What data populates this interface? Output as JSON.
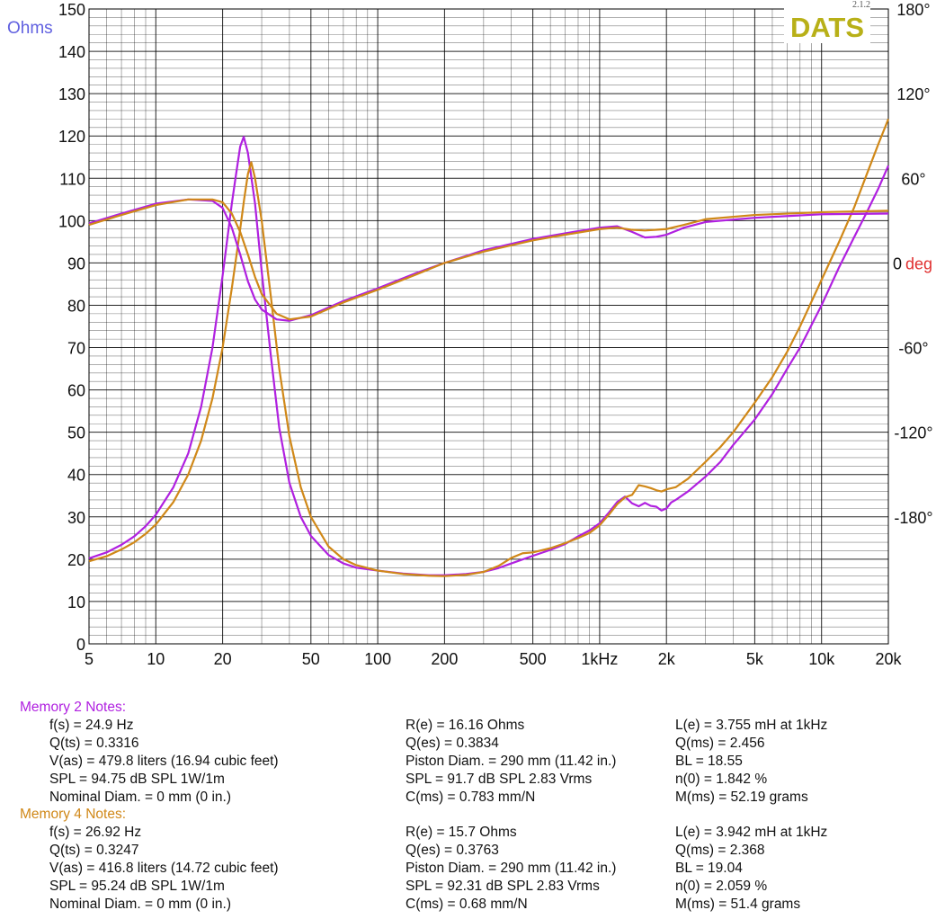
{
  "chart_data": {
    "type": "line",
    "xscale": "log",
    "x_ticks": [
      5,
      10,
      20,
      50,
      100,
      200,
      500,
      1000,
      2000,
      5000,
      10000,
      20000
    ],
    "x_tick_labels": [
      "5",
      "10",
      "20",
      "50",
      "100",
      "200",
      "500",
      "1kHz",
      "2k",
      "5k",
      "10k",
      "20k"
    ],
    "xlim": [
      5,
      20000
    ],
    "ylim": [
      0,
      150
    ],
    "y_ticks": [
      0,
      10,
      20,
      30,
      40,
      50,
      60,
      70,
      80,
      90,
      100,
      110,
      120,
      130,
      140,
      150
    ],
    "y_tick_labels": [
      "0",
      "10",
      "20",
      "30",
      "40",
      "50",
      "60",
      "70",
      "80",
      "90",
      "100",
      "110",
      "120",
      "130",
      "140",
      "150"
    ],
    "ylabel": "Ohms",
    "y2lim": [
      -270,
      180
    ],
    "y2_ticks": [
      180,
      120,
      60,
      0,
      -60,
      -120,
      -180
    ],
    "y2_tick_labels": [
      "180°",
      "120°",
      "60°",
      "0",
      "-60°",
      "-120°",
      "-180°"
    ],
    "y2label": "deg",
    "brand": "DATS",
    "version": "2.1.2",
    "grid": true,
    "colors": {
      "memory2": "#b020e0",
      "memory4": "#d08818",
      "ohms_label": "#6060e0",
      "deg_label": "#e03030",
      "brand": "#b8b018",
      "grid": "#000000"
    },
    "series": [
      {
        "name": "Memory 2 impedance",
        "color": "#b020e0",
        "points": [
          [
            5,
            20.2
          ],
          [
            6,
            21.6
          ],
          [
            7,
            23.4
          ],
          [
            8,
            25.4
          ],
          [
            9,
            27.8
          ],
          [
            10,
            30.5
          ],
          [
            12,
            37
          ],
          [
            14,
            45
          ],
          [
            16,
            56
          ],
          [
            18,
            70
          ],
          [
            20,
            87
          ],
          [
            22,
            104
          ],
          [
            23,
            111
          ],
          [
            24,
            117.5
          ],
          [
            24.9,
            119.8
          ],
          [
            26,
            116
          ],
          [
            28,
            104
          ],
          [
            30,
            88
          ],
          [
            33,
            68
          ],
          [
            36,
            51
          ],
          [
            40,
            38
          ],
          [
            45,
            30
          ],
          [
            50,
            25.5
          ],
          [
            60,
            21
          ],
          [
            70,
            19
          ],
          [
            80,
            18
          ],
          [
            100,
            17.3
          ],
          [
            130,
            16.6
          ],
          [
            170,
            16.2
          ],
          [
            200,
            16.2
          ],
          [
            250,
            16.5
          ],
          [
            300,
            17
          ],
          [
            350,
            17.9
          ],
          [
            400,
            19
          ],
          [
            500,
            20.8
          ],
          [
            600,
            22.2
          ],
          [
            700,
            23.6
          ],
          [
            800,
            25.4
          ],
          [
            900,
            26.8
          ],
          [
            1000,
            28.5
          ],
          [
            1100,
            31
          ],
          [
            1200,
            33.5
          ],
          [
            1300,
            34.8
          ],
          [
            1400,
            33.2
          ],
          [
            1500,
            32.5
          ],
          [
            1600,
            33.3
          ],
          [
            1700,
            32.6
          ],
          [
            1800,
            32.4
          ],
          [
            1900,
            31.5
          ],
          [
            2000,
            32
          ],
          [
            2100,
            33.4
          ],
          [
            2200,
            34
          ],
          [
            2500,
            36
          ],
          [
            3000,
            39.5
          ],
          [
            3500,
            43
          ],
          [
            4000,
            47
          ],
          [
            5000,
            53
          ],
          [
            6000,
            59
          ],
          [
            7000,
            65
          ],
          [
            8000,
            70
          ],
          [
            10000,
            80
          ],
          [
            12000,
            89
          ],
          [
            14000,
            96
          ],
          [
            16000,
            102
          ],
          [
            18000,
            107.5
          ],
          [
            20000,
            113
          ]
        ]
      },
      {
        "name": "Memory 4 impedance",
        "color": "#d08818",
        "points": [
          [
            5,
            19.5
          ],
          [
            6,
            20.7
          ],
          [
            7,
            22.3
          ],
          [
            8,
            24
          ],
          [
            9,
            26
          ],
          [
            10,
            28.2
          ],
          [
            12,
            33.5
          ],
          [
            14,
            40
          ],
          [
            16,
            48
          ],
          [
            18,
            58
          ],
          [
            20,
            70
          ],
          [
            22,
            84
          ],
          [
            24,
            98
          ],
          [
            25,
            105
          ],
          [
            26,
            111
          ],
          [
            26.92,
            113.8
          ],
          [
            28,
            110
          ],
          [
            30,
            100
          ],
          [
            33,
            82
          ],
          [
            36,
            65
          ],
          [
            40,
            49
          ],
          [
            45,
            37
          ],
          [
            50,
            30
          ],
          [
            60,
            23
          ],
          [
            70,
            20
          ],
          [
            80,
            18.6
          ],
          [
            100,
            17.3
          ],
          [
            130,
            16.5
          ],
          [
            170,
            16.1
          ],
          [
            200,
            16
          ],
          [
            250,
            16.3
          ],
          [
            300,
            17
          ],
          [
            350,
            18.4
          ],
          [
            400,
            20.3
          ],
          [
            450,
            21.4
          ],
          [
            500,
            21.6
          ],
          [
            600,
            22.6
          ],
          [
            700,
            23.8
          ],
          [
            800,
            25
          ],
          [
            900,
            26.2
          ],
          [
            1000,
            28
          ],
          [
            1100,
            30.5
          ],
          [
            1200,
            33
          ],
          [
            1300,
            34.6
          ],
          [
            1400,
            35.2
          ],
          [
            1500,
            37.5
          ],
          [
            1600,
            37.2
          ],
          [
            1700,
            36.8
          ],
          [
            1800,
            36.3
          ],
          [
            1900,
            36
          ],
          [
            2000,
            36.5
          ],
          [
            2200,
            37
          ],
          [
            2500,
            39
          ],
          [
            3000,
            43
          ],
          [
            3500,
            46.5
          ],
          [
            4000,
            50
          ],
          [
            5000,
            57
          ],
          [
            6000,
            63
          ],
          [
            7000,
            69
          ],
          [
            8000,
            75
          ],
          [
            10000,
            86
          ],
          [
            12000,
            95
          ],
          [
            14000,
            103
          ],
          [
            16000,
            111
          ],
          [
            18000,
            118
          ],
          [
            20000,
            124
          ]
        ]
      },
      {
        "name": "Memory 2 phase",
        "axis": "deg",
        "color": "#b020e0",
        "points": [
          [
            5,
            28
          ],
          [
            7,
            35
          ],
          [
            10,
            42
          ],
          [
            14,
            45
          ],
          [
            18,
            44
          ],
          [
            20,
            39
          ],
          [
            22,
            25
          ],
          [
            24,
            6
          ],
          [
            26,
            -13
          ],
          [
            28,
            -26
          ],
          [
            30,
            -33
          ],
          [
            35,
            -40
          ],
          [
            40,
            -41
          ],
          [
            50,
            -37
          ],
          [
            70,
            -27
          ],
          [
            100,
            -18
          ],
          [
            150,
            -7
          ],
          [
            200,
            0
          ],
          [
            300,
            9
          ],
          [
            500,
            17
          ],
          [
            700,
            21
          ],
          [
            1000,
            25
          ],
          [
            1200,
            26
          ],
          [
            1400,
            22
          ],
          [
            1600,
            18
          ],
          [
            1800,
            18.5
          ],
          [
            2000,
            20
          ],
          [
            2400,
            25
          ],
          [
            3000,
            29
          ],
          [
            5000,
            32
          ],
          [
            10000,
            34.5
          ],
          [
            20000,
            35
          ]
        ]
      },
      {
        "name": "Memory 4 phase",
        "axis": "deg",
        "color": "#d08818",
        "points": [
          [
            5,
            27
          ],
          [
            7,
            34
          ],
          [
            10,
            41
          ],
          [
            14,
            45
          ],
          [
            18,
            45
          ],
          [
            20,
            43
          ],
          [
            22,
            35
          ],
          [
            24,
            22
          ],
          [
            26,
            6
          ],
          [
            28,
            -10
          ],
          [
            30,
            -22
          ],
          [
            35,
            -36
          ],
          [
            40,
            -40
          ],
          [
            50,
            -38
          ],
          [
            70,
            -28
          ],
          [
            100,
            -19
          ],
          [
            150,
            -8
          ],
          [
            200,
            0
          ],
          [
            300,
            8
          ],
          [
            500,
            16
          ],
          [
            700,
            20
          ],
          [
            1000,
            24
          ],
          [
            1200,
            25
          ],
          [
            1400,
            23.5
          ],
          [
            1600,
            23
          ],
          [
            1800,
            23.5
          ],
          [
            2000,
            24
          ],
          [
            2400,
            27
          ],
          [
            3000,
            31
          ],
          [
            5000,
            34
          ],
          [
            10000,
            36
          ],
          [
            20000,
            37
          ]
        ]
      }
    ]
  },
  "notes": [
    {
      "header": "Memory 2 Notes:",
      "color": "#b020e0",
      "lines": [
        [
          "f(s) = 24.9 Hz",
          "R(e) = 16.16 Ohms",
          "L(e) = 3.755 mH at 1kHz"
        ],
        [
          "Q(ts) = 0.3316",
          "Q(es) = 0.3834",
          "Q(ms) = 2.456"
        ],
        [
          "V(as) = 479.8 liters  (16.94 cubic feet)",
          "Piston Diam. = 290 mm (11.42 in.)",
          "BL = 18.55"
        ],
        [
          "SPL = 94.75 dB SPL 1W/1m",
          "SPL = 91.7 dB SPL 2.83 Vrms",
          "n(0) = 1.842 %"
        ],
        [
          "Nominal Diam. = 0 mm (0 in.)",
          "C(ms) = 0.783 mm/N",
          "M(ms) = 52.19 grams"
        ]
      ]
    },
    {
      "header": "Memory 4 Notes:",
      "color": "#d08818",
      "lines": [
        [
          "f(s) = 26.92 Hz",
          "R(e) = 15.7 Ohms",
          "L(e) = 3.942 mH at 1kHz"
        ],
        [
          "Q(ts) = 0.3247",
          "Q(es) = 0.3763",
          "Q(ms) = 2.368"
        ],
        [
          "V(as) = 416.8 liters  (14.72 cubic feet)",
          "Piston Diam. = 290 mm (11.42 in.)",
          "BL = 19.04"
        ],
        [
          "SPL = 95.24 dB SPL 1W/1m",
          "SPL = 92.31 dB SPL 2.83 Vrms",
          "n(0) = 2.059 %"
        ],
        [
          "Nominal Diam. = 0 mm (0 in.)",
          "C(ms) = 0.68 mm/N",
          "M(ms) = 51.4 grams"
        ]
      ]
    }
  ]
}
